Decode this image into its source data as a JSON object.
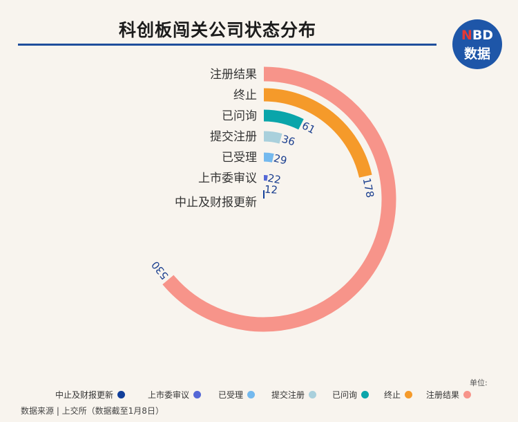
{
  "title": "科创板闯关公司状态分布",
  "logo": {
    "top": "NBD",
    "bottom": "数据"
  },
  "unit_label": "单位:",
  "source": "数据来源 | 上交所（数据截至1月8日）",
  "colors": {
    "注册结果": "#f7948a",
    "终止": "#f59a2a",
    "已问询": "#0aa5aa",
    "提交注册": "#a9d0dc",
    "已受理": "#74b9ee",
    "上市委审议": "#5568d6",
    "中止及财报更新": "#123f9a"
  },
  "chart_data": {
    "type": "radial-bar",
    "title": "科创板闯关公司状态分布",
    "categories": [
      "注册结果",
      "终止",
      "已问询",
      "提交注册",
      "已受理",
      "上市委审议",
      "中止及财报更新"
    ],
    "values": [
      530,
      178,
      61,
      36,
      29,
      22,
      12
    ],
    "legend": {
      "position": "bottom",
      "order": [
        "中止及财报更新",
        "上市委审议",
        "已受理",
        "提交注册",
        "已问询",
        "终止",
        "注册结果"
      ]
    },
    "unit": "单位:"
  }
}
